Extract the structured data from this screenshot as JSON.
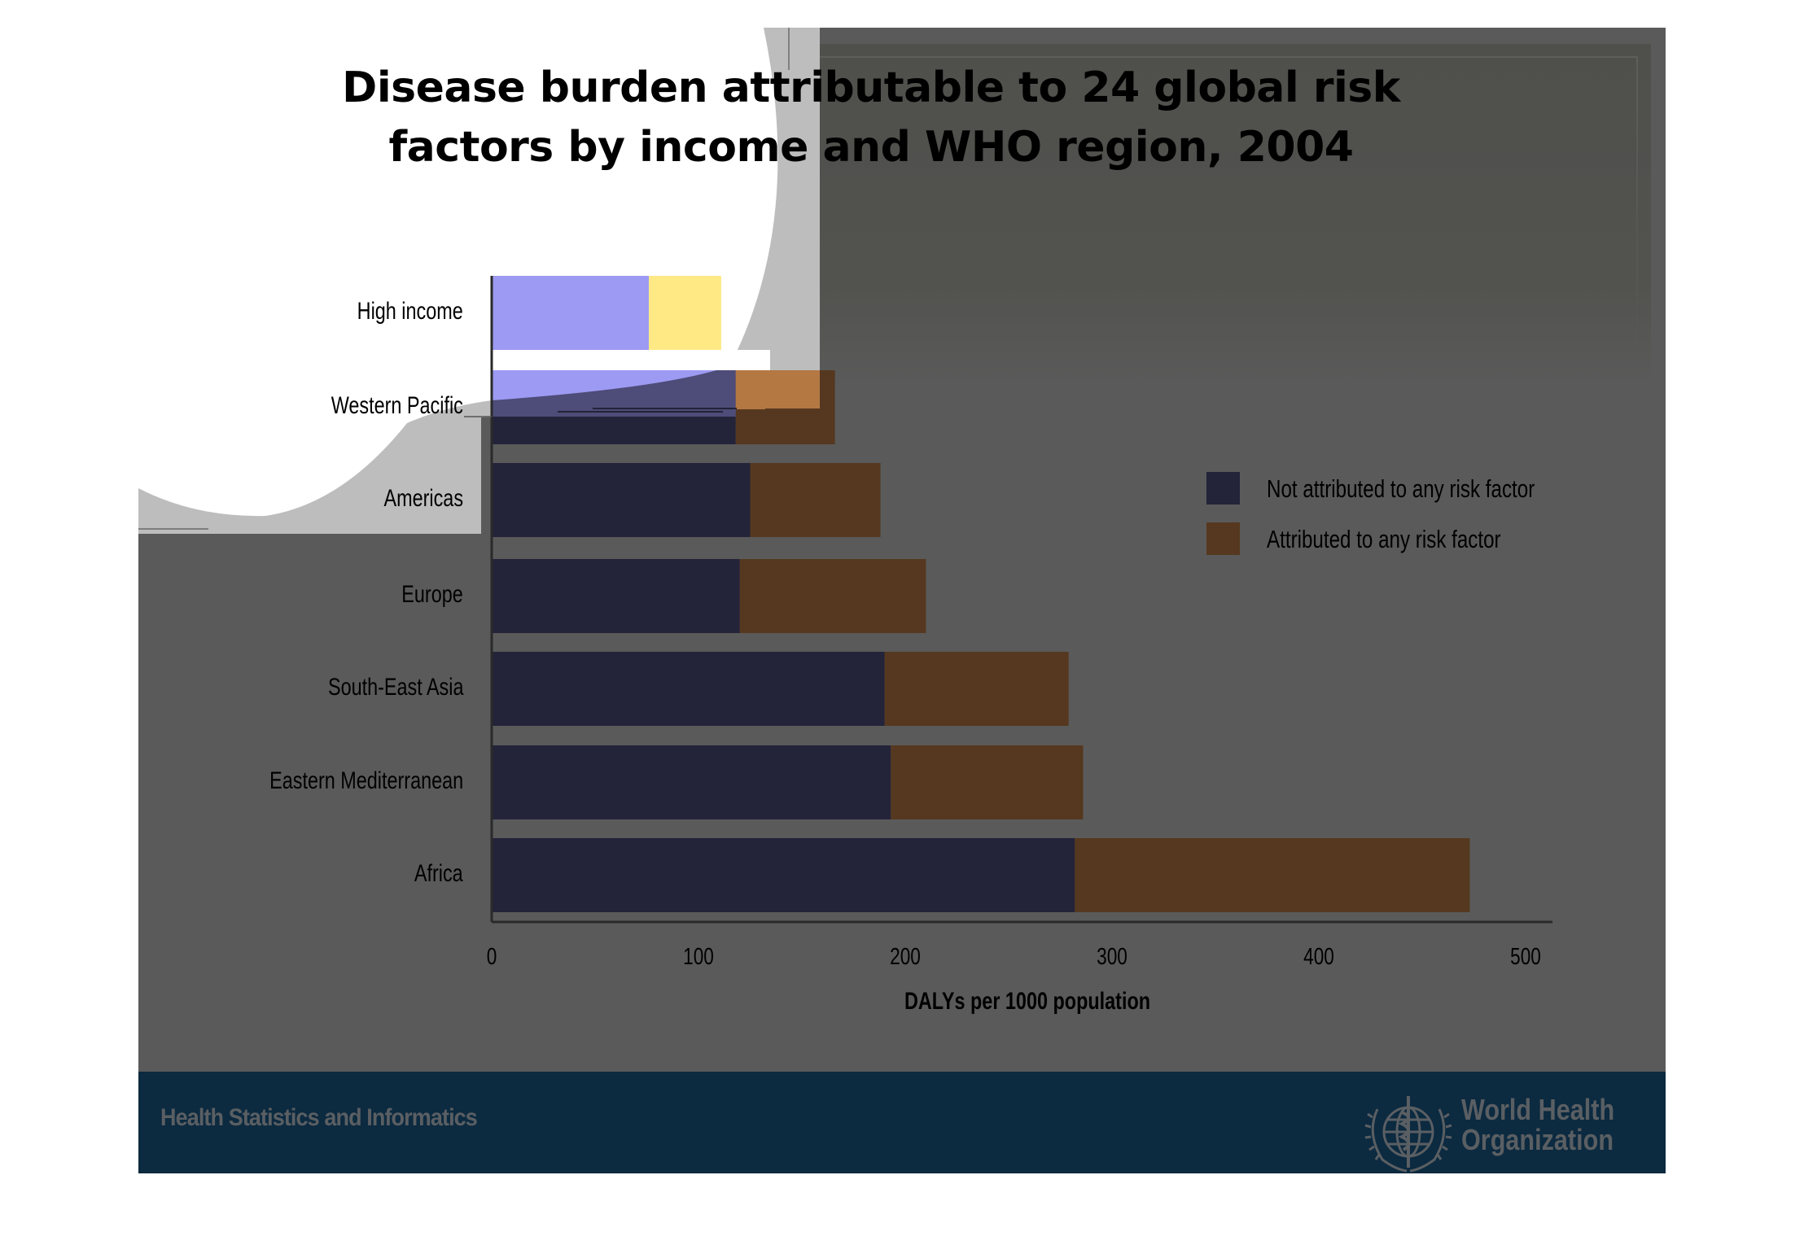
{
  "slide": {
    "title_line1": "Disease burden attributable to 24 global risk",
    "title_line2": "factors by income and WHO region, 2004",
    "footer_text": "Health Statistics and Informatics",
    "org_name_line1": "World Health",
    "org_name_line2": "Organization",
    "logo_icon": "who-emblem-icon"
  },
  "colors": {
    "not_attributed": "#23233a",
    "attributed": "#55381f",
    "slide_background": "#5a5a5a",
    "footer_background": "#0c2a40"
  },
  "chart_data": {
    "type": "bar",
    "orientation": "horizontal",
    "stacked": true,
    "title": "Disease burden attributable to 24 global risk factors by income and WHO region, 2004",
    "categories": [
      "High income",
      "Western Pacific",
      "Americas",
      "Europe",
      "South-East Asia",
      "Eastern Mediterranean",
      "Africa"
    ],
    "series": [
      {
        "name": "Not attributed to any risk factor",
        "color": "#23233a",
        "values": [
          76,
          118,
          125,
          120,
          190,
          193,
          282
        ]
      },
      {
        "name": "Attributed to any risk factor",
        "color": "#55381f",
        "values": [
          35,
          48,
          63,
          90,
          89,
          93,
          191
        ]
      }
    ],
    "totals": [
      111,
      166,
      188,
      210,
      279,
      286,
      473
    ],
    "xlabel": "DALYs per 1000 population",
    "ylabel": "",
    "xlim": [
      0,
      513
    ],
    "xticks": [
      0,
      100,
      200,
      300,
      400,
      500
    ],
    "xtick_labels": [
      "0",
      "100",
      "200",
      "300",
      "400",
      "500"
    ],
    "grid": false,
    "legend": [
      "Not attributed to any risk factor",
      "Attributed to any risk factor"
    ],
    "legend_position": "right"
  }
}
